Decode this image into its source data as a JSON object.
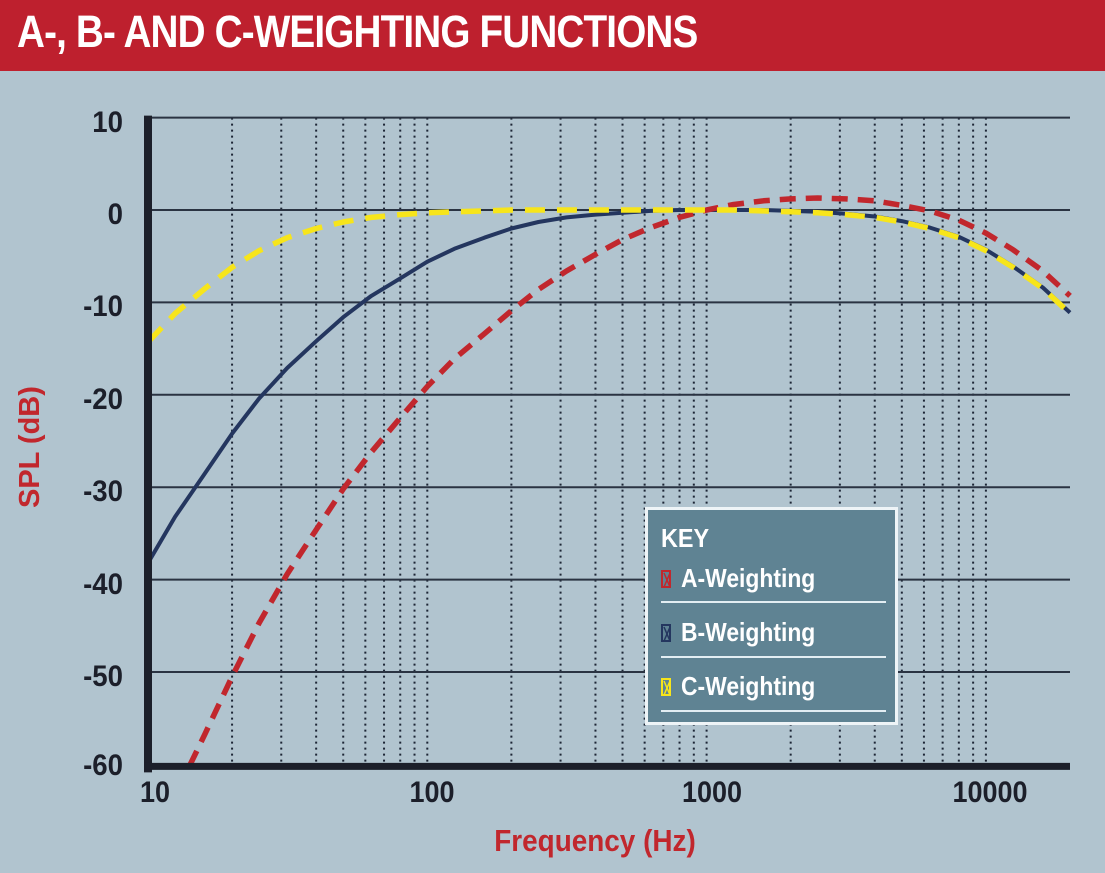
{
  "header": {
    "title": "A-, B- AND C-WEIGHTING FUNCTIONS"
  },
  "axes": {
    "y_label": "SPL (dB)",
    "x_label": "Frequency (Hz)",
    "y_ticks": [
      "10",
      "0",
      "-10",
      "-20",
      "-30",
      "-40",
      "-50",
      "-60"
    ],
    "x_ticks": [
      "10",
      "100",
      "1000",
      "10000"
    ]
  },
  "legend": {
    "title": "KEY",
    "items": [
      {
        "label": "A-Weighting",
        "color": "#c1272d"
      },
      {
        "label": "B-Weighting",
        "color": "#24365f"
      },
      {
        "label": "C-Weighting",
        "color": "#f7e51b"
      }
    ]
  },
  "colors": {
    "title_bar": "#be202e",
    "background": "#b1c4cf",
    "axis": "#1c1f2a",
    "label_red": "#c1272d",
    "key_bg": "#5f8393"
  },
  "chart_data": {
    "type": "line",
    "title": "A-, B- AND C-WEIGHTING FUNCTIONS",
    "xlabel": "Frequency (Hz)",
    "ylabel": "SPL (dB)",
    "xscale": "log",
    "xlim": [
      10,
      20000
    ],
    "ylim": [
      -60,
      10
    ],
    "grid": {
      "horizontal": "solid every 10 dB",
      "vertical": "dotted at log minor ticks"
    },
    "legend_position": "lower right (inside plot)",
    "x": [
      10,
      12.5,
      16,
      20,
      25,
      31.5,
      40,
      50,
      63,
      80,
      100,
      125,
      160,
      200,
      250,
      315,
      400,
      500,
      630,
      800,
      1000,
      1250,
      1600,
      2000,
      2500,
      3150,
      4000,
      5000,
      6300,
      8000,
      10000,
      12500,
      16000,
      20000
    ],
    "series": [
      {
        "name": "A-Weighting",
        "style": "dashed",
        "color": "#c1272d",
        "values": [
          -70.4,
          -63.4,
          -56.7,
          -50.5,
          -44.7,
          -39.4,
          -34.6,
          -30.2,
          -26.2,
          -22.5,
          -19.1,
          -16.1,
          -13.4,
          -10.9,
          -8.6,
          -6.6,
          -4.8,
          -3.2,
          -1.9,
          -0.8,
          0,
          0.6,
          1.0,
          1.2,
          1.3,
          1.2,
          1.0,
          0.5,
          -0.1,
          -1.1,
          -2.5,
          -4.3,
          -6.6,
          -9.3
        ]
      },
      {
        "name": "B-Weighting",
        "style": "solid",
        "color": "#24365f",
        "values": [
          -38.2,
          -33.2,
          -28.5,
          -24.2,
          -20.4,
          -17.1,
          -14.2,
          -11.6,
          -9.3,
          -7.4,
          -5.6,
          -4.2,
          -3.0,
          -2.0,
          -1.3,
          -0.8,
          -0.5,
          -0.3,
          -0.1,
          0,
          0,
          0,
          0,
          -0.1,
          -0.2,
          -0.4,
          -0.7,
          -1.2,
          -1.9,
          -2.9,
          -4.3,
          -6.1,
          -8.4,
          -11.1
        ]
      },
      {
        "name": "C-Weighting",
        "style": "dashed",
        "color": "#f7e51b",
        "values": [
          -14.3,
          -11.2,
          -8.5,
          -6.2,
          -4.4,
          -3.0,
          -2.0,
          -1.3,
          -0.8,
          -0.5,
          -0.3,
          -0.2,
          -0.1,
          0,
          0,
          0,
          0,
          0,
          0,
          0,
          0,
          0,
          -0.1,
          -0.2,
          -0.3,
          -0.5,
          -0.8,
          -1.3,
          -2.0,
          -3.0,
          -4.4,
          -6.2,
          -8.5,
          -11.2
        ]
      }
    ]
  }
}
